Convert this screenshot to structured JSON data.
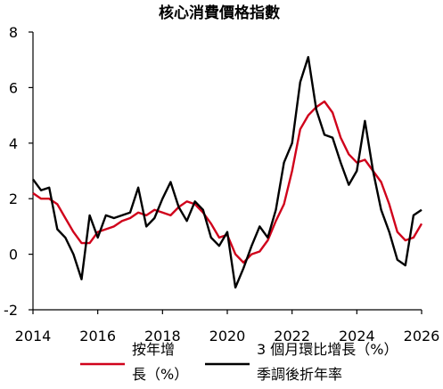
{
  "chart_data": {
    "type": "line",
    "title": "核心消費價格指數",
    "xlabel": "",
    "ylabel": "",
    "xlim": [
      2014,
      2026
    ],
    "ylim": [
      -2,
      8
    ],
    "x_ticks": [
      "2014",
      "2016",
      "2018",
      "2020",
      "2022",
      "2024",
      "2026"
    ],
    "y_ticks": [
      "8",
      "6",
      "4",
      "2",
      "0",
      "-2"
    ],
    "grid": false,
    "legend_position": "bottom",
    "colors": {
      "yoy": "#d0021b",
      "mom3": "#000000",
      "axis": "#000000"
    },
    "x": [
      2014.0,
      2014.25,
      2014.5,
      2014.75,
      2015.0,
      2015.25,
      2015.5,
      2015.75,
      2016.0,
      2016.25,
      2016.5,
      2016.75,
      2017.0,
      2017.25,
      2017.5,
      2017.75,
      2018.0,
      2018.25,
      2018.5,
      2018.75,
      2019.0,
      2019.25,
      2019.5,
      2019.75,
      2020.0,
      2020.25,
      2020.5,
      2020.75,
      2021.0,
      2021.25,
      2021.5,
      2021.75,
      2022.0,
      2022.25,
      2022.5,
      2022.75,
      2023.0,
      2023.25,
      2023.5,
      2023.75,
      2024.0,
      2024.25,
      2024.5,
      2024.75,
      2025.0,
      2025.25,
      2025.5,
      2025.75,
      2026.0
    ],
    "series": [
      {
        "name": "按年增長（%）",
        "key": "yoy",
        "values": [
          2.2,
          2.0,
          2.0,
          1.8,
          1.3,
          0.8,
          0.4,
          0.4,
          0.8,
          0.9,
          1.0,
          1.2,
          1.3,
          1.5,
          1.4,
          1.6,
          1.5,
          1.4,
          1.7,
          1.9,
          1.8,
          1.5,
          1.1,
          0.6,
          0.7,
          0.0,
          -0.3,
          0.0,
          0.1,
          0.5,
          1.2,
          1.8,
          3.0,
          4.5,
          5.0,
          5.3,
          5.5,
          5.1,
          4.2,
          3.6,
          3.3,
          3.4,
          3.0,
          2.6,
          1.8,
          0.8,
          0.5,
          0.6,
          1.1
        ]
      },
      {
        "name": "3 個月環比增長（%）季調後折年率",
        "key": "mom3",
        "values": [
          2.7,
          2.3,
          2.4,
          0.9,
          0.6,
          0.0,
          -0.9,
          1.4,
          0.6,
          1.4,
          1.3,
          1.4,
          1.5,
          2.4,
          1.0,
          1.3,
          2.0,
          2.6,
          1.7,
          1.2,
          1.9,
          1.6,
          0.6,
          0.3,
          0.8,
          -1.2,
          -0.5,
          0.3,
          1.0,
          0.6,
          1.6,
          3.3,
          4.0,
          6.2,
          7.1,
          5.2,
          4.3,
          4.2,
          3.3,
          2.5,
          3.0,
          4.8,
          3.0,
          1.6,
          0.8,
          -0.2,
          -0.4,
          1.4,
          1.6
        ]
      }
    ]
  }
}
